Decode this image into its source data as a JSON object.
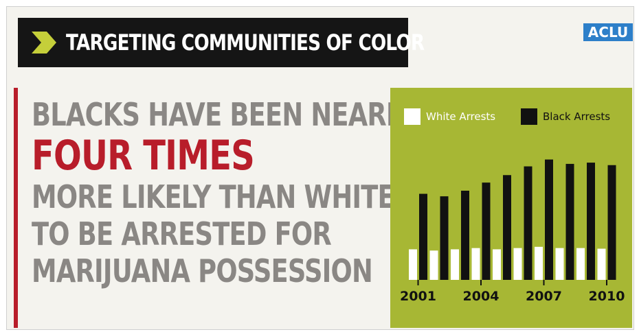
{
  "banner": {
    "title": "TARGETING COMMUNITIES OF COLOR"
  },
  "logo": {
    "text": "ACLU",
    "color": "#2d7fc9"
  },
  "headline": {
    "line1": "BLACKS HAVE BEEN NEARLY",
    "emphasis": "FOUR TIMES",
    "line3": "MORE LIKELY THAN WHITES",
    "line4": "TO BE ARRESTED FOR",
    "line5": "MARIJUANA POSSESSION"
  },
  "colors": {
    "accent_red": "#b81d2a",
    "headline_gray": "#8a8784",
    "chart_background": "#a7b734",
    "white_bar": "#ffffff",
    "black_bar": "#111111"
  },
  "chart_data": {
    "type": "bar",
    "categories": [
      "2001",
      "2002",
      "2003",
      "2004",
      "2005",
      "2006",
      "2007",
      "2008",
      "2009",
      "2010"
    ],
    "tick_labels": [
      "2001",
      "2004",
      "2007",
      "2010"
    ],
    "series": [
      {
        "name": "White Arrests",
        "values": [
          49,
          47,
          49,
          51,
          49,
          51,
          53,
          51,
          51,
          50
        ],
        "color": "#ffffff"
      },
      {
        "name": "Black Arrests",
        "values": [
          138,
          134,
          143,
          156,
          168,
          182,
          193,
          186,
          188,
          184
        ],
        "color": "#111111"
      }
    ],
    "xlabel": "",
    "ylabel": "",
    "ylim": [
      0,
      220
    ],
    "grid": false,
    "legend": "top"
  }
}
